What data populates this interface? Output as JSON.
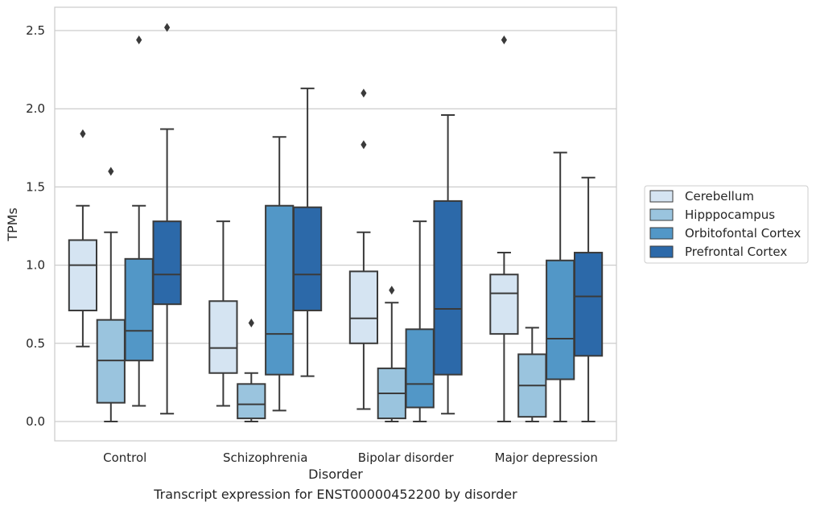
{
  "caption": "Transcript expression for ENST00000452200 by disorder",
  "chart_data": {
    "type": "boxplot",
    "xlabel": "Disorder",
    "ylabel": "TPMs",
    "ylim": [
      -0.12,
      2.65
    ],
    "yticks": [
      0.0,
      0.5,
      1.0,
      1.5,
      2.0,
      2.5
    ],
    "ytick_labels": [
      "0.0",
      "0.5",
      "1.0",
      "1.5",
      "2.0",
      "2.5"
    ],
    "grid": "horizontal",
    "legend_position": "right",
    "categories": [
      "Control",
      "Schizophrenia",
      "Bipolar disorder",
      "Major depression"
    ],
    "series": [
      {
        "name": "Cerebellum",
        "color": "#d5e4f2",
        "boxes": [
          {
            "whisker_low": 0.48,
            "q1": 0.71,
            "median": 1.0,
            "q3": 1.16,
            "whisker_high": 1.38,
            "outliers": [
              1.84
            ]
          },
          {
            "whisker_low": 0.1,
            "q1": 0.31,
            "median": 0.47,
            "q3": 0.77,
            "whisker_high": 1.28,
            "outliers": []
          },
          {
            "whisker_low": 0.08,
            "q1": 0.5,
            "median": 0.66,
            "q3": 0.96,
            "whisker_high": 1.21,
            "outliers": [
              1.77,
              2.1
            ]
          },
          {
            "whisker_low": 0.0,
            "q1": 0.56,
            "median": 0.82,
            "q3": 0.94,
            "whisker_high": 1.08,
            "outliers": [
              2.44
            ]
          }
        ]
      },
      {
        "name": "Hipppocampus",
        "color": "#9ac4de",
        "boxes": [
          {
            "whisker_low": 0.0,
            "q1": 0.12,
            "median": 0.39,
            "q3": 0.65,
            "whisker_high": 1.21,
            "outliers": [
              1.6
            ]
          },
          {
            "whisker_low": 0.0,
            "q1": 0.02,
            "median": 0.11,
            "q3": 0.24,
            "whisker_high": 0.31,
            "outliers": [
              0.63
            ]
          },
          {
            "whisker_low": 0.0,
            "q1": 0.02,
            "median": 0.18,
            "q3": 0.34,
            "whisker_high": 0.76,
            "outliers": [
              0.84
            ]
          },
          {
            "whisker_low": 0.0,
            "q1": 0.03,
            "median": 0.23,
            "q3": 0.43,
            "whisker_high": 0.6,
            "outliers": []
          }
        ]
      },
      {
        "name": "Orbitofontal Cortex",
        "color": "#5297c7",
        "boxes": [
          {
            "whisker_low": 0.1,
            "q1": 0.39,
            "median": 0.58,
            "q3": 1.04,
            "whisker_high": 1.38,
            "outliers": [
              2.44
            ]
          },
          {
            "whisker_low": 0.07,
            "q1": 0.3,
            "median": 0.56,
            "q3": 1.38,
            "whisker_high": 1.82,
            "outliers": []
          },
          {
            "whisker_low": 0.0,
            "q1": 0.09,
            "median": 0.24,
            "q3": 0.59,
            "whisker_high": 1.28,
            "outliers": []
          },
          {
            "whisker_low": 0.0,
            "q1": 0.27,
            "median": 0.53,
            "q3": 1.03,
            "whisker_high": 1.72,
            "outliers": []
          }
        ]
      },
      {
        "name": "Prefrontal Cortex",
        "color": "#2c69a9",
        "boxes": [
          {
            "whisker_low": 0.05,
            "q1": 0.75,
            "median": 0.94,
            "q3": 1.28,
            "whisker_high": 1.87,
            "outliers": [
              2.52
            ]
          },
          {
            "whisker_low": 0.29,
            "q1": 0.71,
            "median": 0.94,
            "q3": 1.37,
            "whisker_high": 2.13,
            "outliers": []
          },
          {
            "whisker_low": 0.05,
            "q1": 0.3,
            "median": 0.72,
            "q3": 1.41,
            "whisker_high": 1.96,
            "outliers": []
          },
          {
            "whisker_low": 0.0,
            "q1": 0.42,
            "median": 0.8,
            "q3": 1.08,
            "whisker_high": 1.56,
            "outliers": []
          }
        ]
      }
    ]
  }
}
